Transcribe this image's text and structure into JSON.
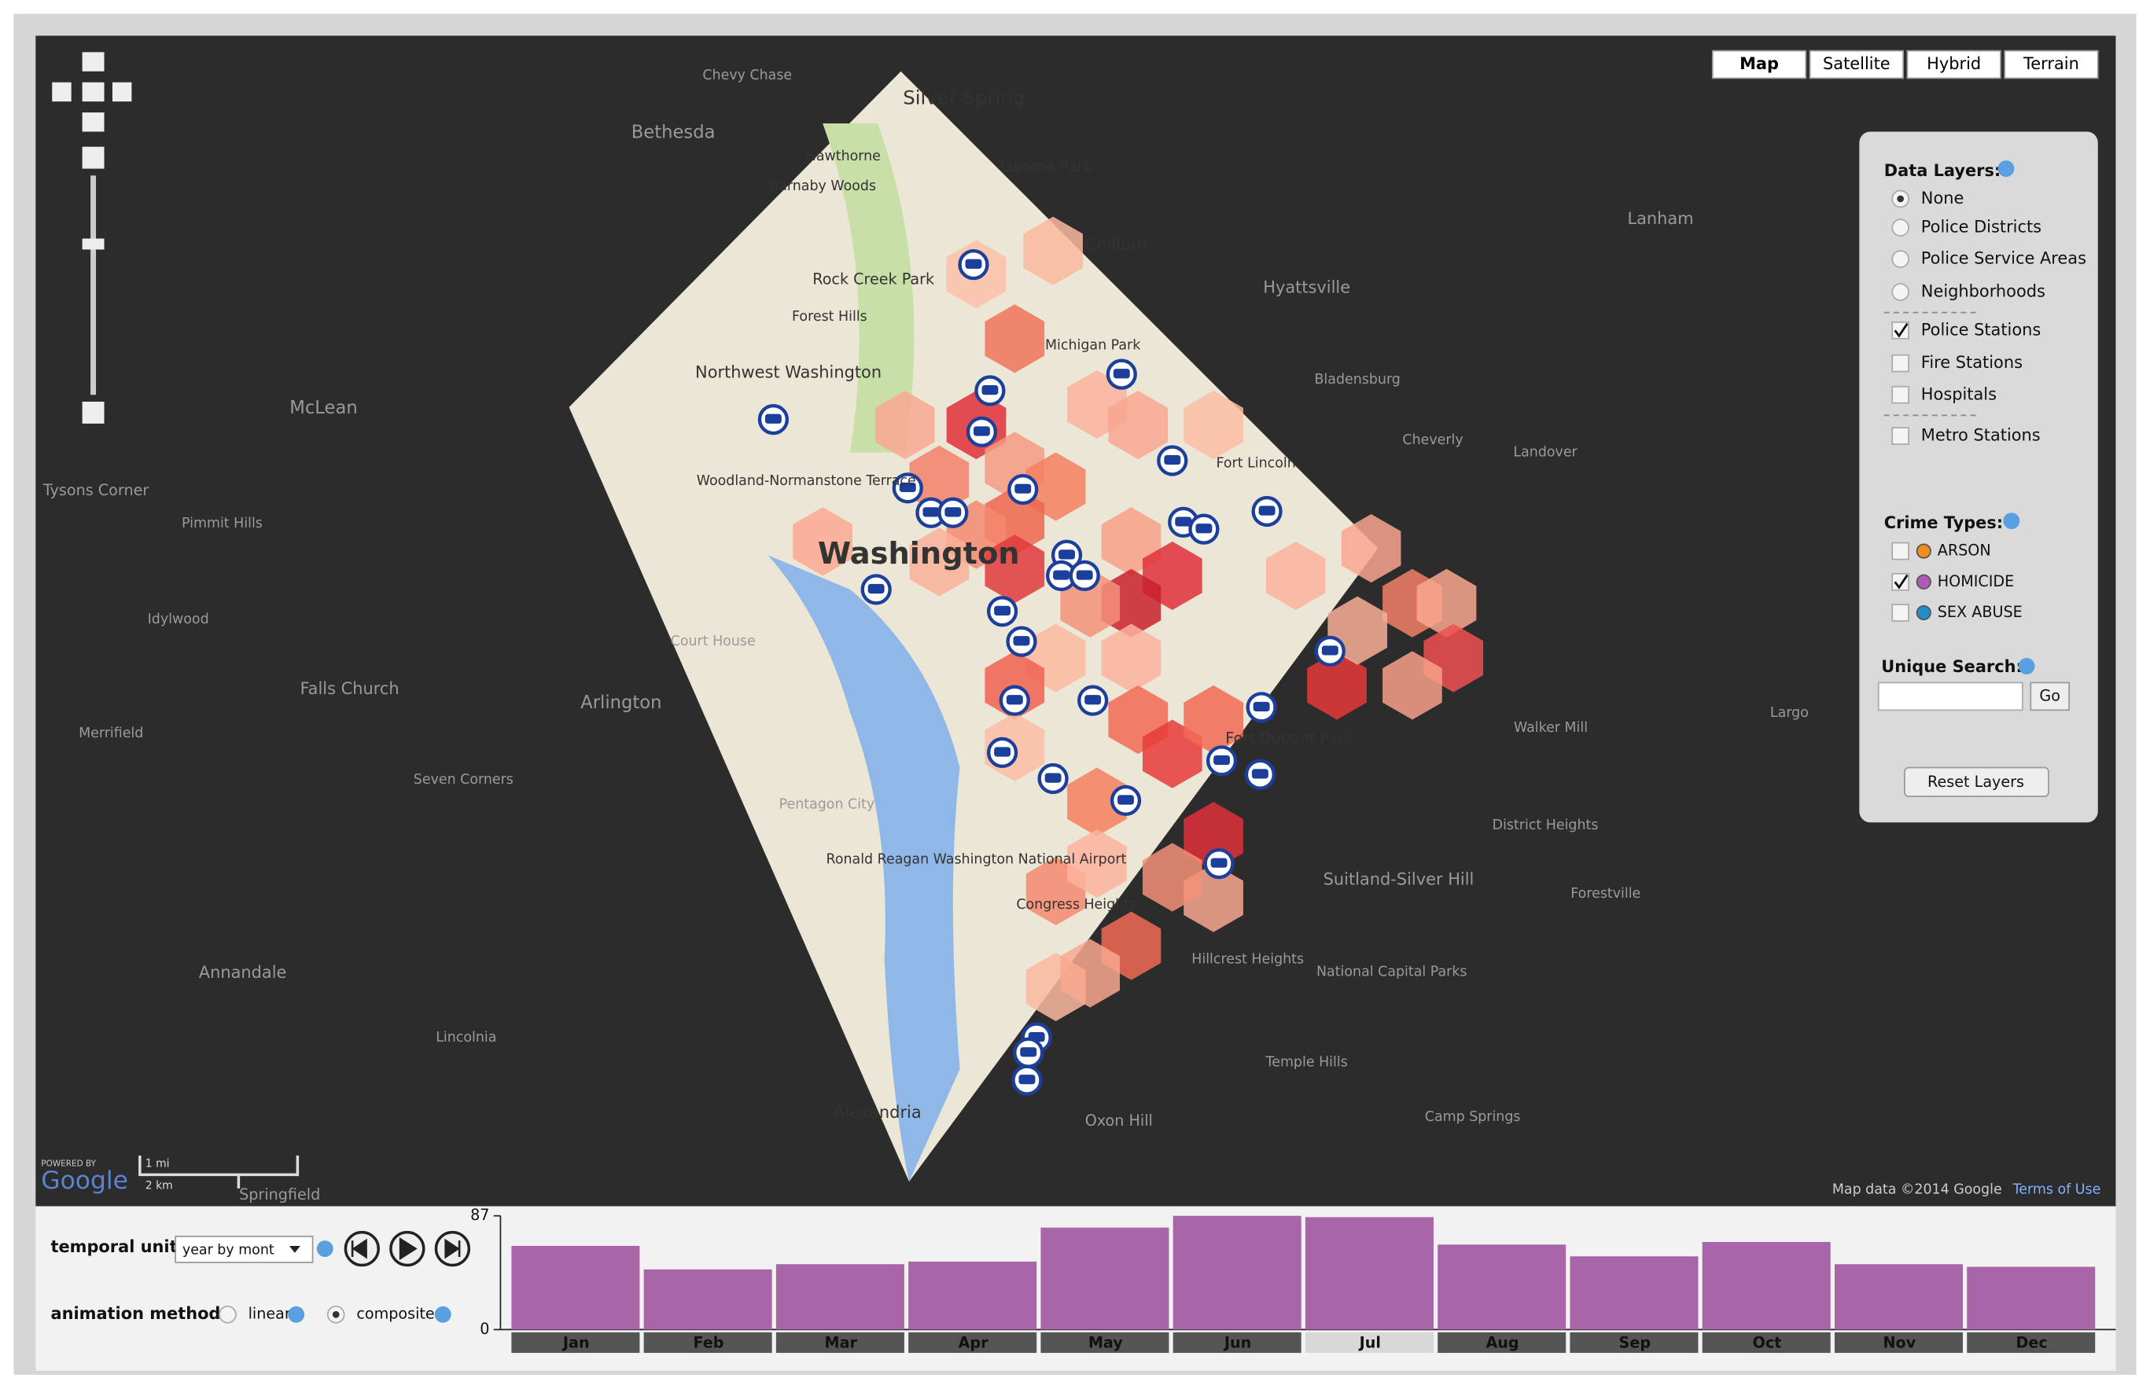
{
  "map_type_buttons": [
    "Map",
    "Satellite",
    "Hybrid",
    "Terrain"
  ],
  "data_layers": {
    "title": "Data Layers:",
    "options": [
      "None",
      "Police Districts",
      "Police Service Areas",
      "Neighborhoods",
      "Police Stations",
      "Fire Stations",
      "Hospitals",
      "Metro Stations"
    ]
  },
  "crime_types": {
    "title": "Crime Types:",
    "options": [
      "ARSON",
      "HOMICIDE",
      "SEX ABUSE"
    ]
  },
  "unique_search": {
    "label": "Unique Search:",
    "button": "Go"
  },
  "reset_button": "Reset Layers",
  "temporal_unit": {
    "label": "temporal unit:",
    "value": "year by mont"
  },
  "animation_method": {
    "label": "animation method:",
    "options": [
      "linear",
      "composite"
    ]
  },
  "map_labels": [
    "Silver Spring",
    "Bethesda",
    "Takoma Park",
    "Chevy Chase",
    "Hawthorne",
    "Barnaby Woods",
    "Rock Creek Park",
    "Forest Hills",
    "Northwest Washington",
    "Chillum",
    "Michigan Park",
    "Woodland-Normanstone Terrace",
    "Washington",
    "Hyattsville",
    "Lanham",
    "McLean",
    "Tysons Corner",
    "Falls Church",
    "Arlington",
    "Annandale",
    "Alexandria",
    "Suitland-Silver Hill",
    "Fort Dupont Park",
    "Hillcrest Heights",
    "Temple Hills",
    "Oxon Hill",
    "Forestville",
    "Ronald Reagan Washington National Airport",
    "Largo",
    "Walker Mill",
    "District Heights",
    "National Capital Parks",
    "Camp Springs",
    "Landover",
    "Cheverly",
    "Bladensburg",
    "Lincolnia",
    "Springfield",
    "Merrifield",
    "Idylwood",
    "Pimmit Hills",
    "Seven Corners",
    "Pentagon City",
    "Court House",
    "Congress Heights",
    "Fort Lincoln"
  ],
  "attribution": "Map data ©2014 Google",
  "terms": "Terms of Use",
  "scale": [
    "1 mi",
    "2 km"
  ],
  "powered_by": "POWERED BY",
  "google": "Google",
  "chart_data": {
    "type": "bar",
    "categories": [
      "Jan",
      "Feb",
      "Mar",
      "Apr",
      "May",
      "Jun",
      "Jul",
      "Aug",
      "Sep",
      "Oct",
      "Nov",
      "Dec"
    ],
    "values": [
      64,
      46,
      50,
      52,
      78,
      87,
      86,
      65,
      56,
      67,
      50,
      48
    ],
    "color": "#a865a8",
    "ylim": [
      0,
      87
    ],
    "yticks": [
      0,
      87
    ]
  }
}
